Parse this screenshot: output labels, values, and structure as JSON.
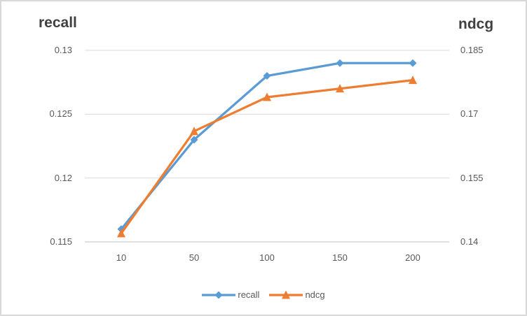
{
  "chart_data": {
    "type": "line",
    "x_categories": [
      "10",
      "50",
      "100",
      "150",
      "200"
    ],
    "series": [
      {
        "name": "recall",
        "color": "#5B9BD5",
        "marker": "diamond",
        "axis": "left",
        "values": [
          0.116,
          0.123,
          0.128,
          0.129,
          0.129
        ]
      },
      {
        "name": "ndcg",
        "color": "#ED7D31",
        "marker": "triangle",
        "axis": "right",
        "values": [
          0.142,
          0.166,
          0.174,
          0.176,
          0.178
        ]
      }
    ],
    "left_axis": {
      "title": "recall",
      "min": 0.115,
      "max": 0.13,
      "ticks": [
        0.13,
        0.125,
        0.12,
        0.115
      ]
    },
    "right_axis": {
      "title": "ndcg",
      "min": 0.14,
      "max": 0.185,
      "ticks": [
        0.185,
        0.17,
        0.155,
        0.14
      ]
    },
    "xlabel": "",
    "grid": true,
    "legend_position": "bottom",
    "legend": [
      "recall",
      "ndcg"
    ]
  },
  "colors": {
    "grid": "#D9D9D9",
    "axis_line": "#BFBFBF",
    "title_text": "#404040",
    "tick_text": "#595959",
    "legend_text": "#595959",
    "series_recall": "#5B9BD5",
    "series_ndcg": "#ED7D31",
    "background": "#FFFFFF",
    "frame_border": "#D9D9D9"
  }
}
